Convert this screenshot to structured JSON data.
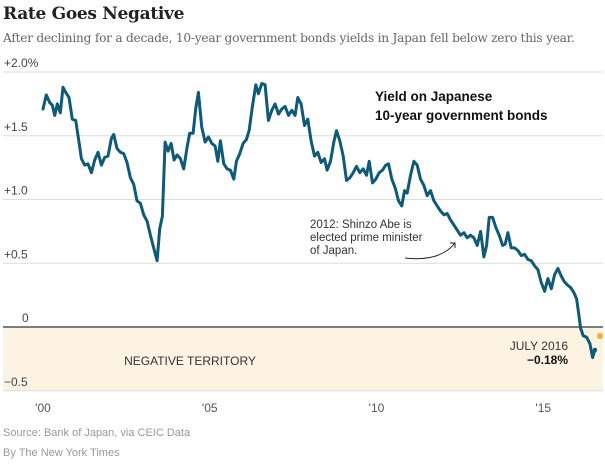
{
  "header": {
    "title": "Rate Goes Negative",
    "subtitle": "After declining for a decade, 10-year government bonds yields in Japan fell below zero this year."
  },
  "footer": {
    "source": "Source: Bank of Japan, via CEIC Data",
    "credit": "By The New York Times"
  },
  "colors": {
    "line": "#0f5a78",
    "negative_band": "#fdf3e3",
    "highlight_dot": "#f4b04f",
    "zero_line": "#333333",
    "grid": "#dddddd"
  },
  "chart_data": {
    "type": "line",
    "title": "Yield on Japanese 10-year government bonds",
    "legend_lines": [
      "Yield on Japanese",
      "10-year government bonds"
    ],
    "xlabel": "",
    "ylabel": "",
    "xlim": [
      2000,
      2017.2
    ],
    "ylim": [
      -0.5,
      2.0
    ],
    "y_ticks": [
      {
        "value": 2.0,
        "label": "+2.0%"
      },
      {
        "value": 1.5,
        "label": "+1.5"
      },
      {
        "value": 1.0,
        "label": "+1.0"
      },
      {
        "value": 0.5,
        "label": "+0.5"
      },
      {
        "value": 0,
        "label": "0"
      },
      {
        "value": -0.5,
        "label": "-0.5"
      }
    ],
    "x_ticks": [
      {
        "value": 2000,
        "label": "'00"
      },
      {
        "value": 2005,
        "label": "'05"
      },
      {
        "value": 2010,
        "label": "'10"
      },
      {
        "value": 2015,
        "label": "'15"
      }
    ],
    "grid": true,
    "negative_region_label": "NEGATIVE TERRITORY",
    "annotation": {
      "lines": [
        "2012: Shinzo Abe is",
        "elected prime minister",
        "of Japan."
      ],
      "target_x": 2012.9,
      "target_y": 0.72
    },
    "end_label": {
      "date": "JULY 2016",
      "value_text": "−0.18%",
      "x": 2016.55,
      "y": -0.18
    },
    "series": [
      {
        "name": "Japan 10-year government bond yield (%)",
        "points": [
          [
            2000.0,
            1.71
          ],
          [
            2000.1,
            1.82
          ],
          [
            2000.2,
            1.76
          ],
          [
            2000.28,
            1.74
          ],
          [
            2000.35,
            1.66
          ],
          [
            2000.43,
            1.75
          ],
          [
            2000.52,
            1.68
          ],
          [
            2000.6,
            1.88
          ],
          [
            2000.68,
            1.84
          ],
          [
            2000.78,
            1.8
          ],
          [
            2000.88,
            1.63
          ],
          [
            2000.98,
            1.62
          ],
          [
            2001.08,
            1.45
          ],
          [
            2001.15,
            1.32
          ],
          [
            2001.25,
            1.27
          ],
          [
            2001.35,
            1.28
          ],
          [
            2001.45,
            1.21
          ],
          [
            2001.55,
            1.31
          ],
          [
            2001.65,
            1.37
          ],
          [
            2001.75,
            1.27
          ],
          [
            2001.85,
            1.33
          ],
          [
            2001.95,
            1.34
          ],
          [
            2002.05,
            1.48
          ],
          [
            2002.12,
            1.51
          ],
          [
            2002.22,
            1.4
          ],
          [
            2002.32,
            1.37
          ],
          [
            2002.42,
            1.36
          ],
          [
            2002.52,
            1.29
          ],
          [
            2002.62,
            1.17
          ],
          [
            2002.72,
            1.12
          ],
          [
            2002.82,
            0.99
          ],
          [
            2002.92,
            0.97
          ],
          [
            2003.02,
            0.88
          ],
          [
            2003.12,
            0.83
          ],
          [
            2003.22,
            0.72
          ],
          [
            2003.32,
            0.62
          ],
          [
            2003.42,
            0.52
          ],
          [
            2003.5,
            0.77
          ],
          [
            2003.58,
            0.87
          ],
          [
            2003.66,
            1.45
          ],
          [
            2003.75,
            1.38
          ],
          [
            2003.84,
            1.44
          ],
          [
            2003.93,
            1.31
          ],
          [
            2004.02,
            1.35
          ],
          [
            2004.12,
            1.32
          ],
          [
            2004.22,
            1.24
          ],
          [
            2004.32,
            1.41
          ],
          [
            2004.4,
            1.52
          ],
          [
            2004.5,
            1.52
          ],
          [
            2004.58,
            1.71
          ],
          [
            2004.66,
            1.84
          ],
          [
            2004.76,
            1.57
          ],
          [
            2004.86,
            1.45
          ],
          [
            2004.96,
            1.49
          ],
          [
            2005.06,
            1.44
          ],
          [
            2005.16,
            1.42
          ],
          [
            2005.24,
            1.3
          ],
          [
            2005.32,
            1.46
          ],
          [
            2005.42,
            1.28
          ],
          [
            2005.52,
            1.24
          ],
          [
            2005.62,
            1.23
          ],
          [
            2005.72,
            1.16
          ],
          [
            2005.8,
            1.3
          ],
          [
            2005.9,
            1.36
          ],
          [
            2006.0,
            1.44
          ],
          [
            2006.1,
            1.47
          ],
          [
            2006.18,
            1.54
          ],
          [
            2006.28,
            1.73
          ],
          [
            2006.38,
            1.9
          ],
          [
            2006.46,
            1.83
          ],
          [
            2006.56,
            1.91
          ],
          [
            2006.66,
            1.9
          ],
          [
            2006.76,
            1.62
          ],
          [
            2006.86,
            1.7
          ],
          [
            2006.96,
            1.75
          ],
          [
            2007.06,
            1.67
          ],
          [
            2007.16,
            1.71
          ],
          [
            2007.26,
            1.73
          ],
          [
            2007.36,
            1.66
          ],
          [
            2007.46,
            1.7
          ],
          [
            2007.56,
            1.66
          ],
          [
            2007.64,
            1.8
          ],
          [
            2007.74,
            1.75
          ],
          [
            2007.84,
            1.58
          ],
          [
            2007.94,
            1.63
          ],
          [
            2008.04,
            1.46
          ],
          [
            2008.14,
            1.34
          ],
          [
            2008.24,
            1.37
          ],
          [
            2008.34,
            1.29
          ],
          [
            2008.44,
            1.32
          ],
          [
            2008.52,
            1.23
          ],
          [
            2008.62,
            1.3
          ],
          [
            2008.72,
            1.45
          ],
          [
            2008.8,
            1.54
          ],
          [
            2008.9,
            1.46
          ],
          [
            2009.0,
            1.34
          ],
          [
            2009.1,
            1.15
          ],
          [
            2009.2,
            1.17
          ],
          [
            2009.3,
            1.21
          ],
          [
            2009.4,
            1.26
          ],
          [
            2009.5,
            1.21
          ],
          [
            2009.6,
            1.24
          ],
          [
            2009.7,
            1.19
          ],
          [
            2009.78,
            1.3
          ],
          [
            2009.88,
            1.13
          ],
          [
            2009.98,
            1.16
          ],
          [
            2010.08,
            1.21
          ],
          [
            2010.18,
            1.23
          ],
          [
            2010.28,
            1.27
          ],
          [
            2010.36,
            1.28
          ],
          [
            2010.46,
            1.16
          ],
          [
            2010.56,
            1.09
          ],
          [
            2010.66,
            0.99
          ],
          [
            2010.76,
            0.95
          ],
          [
            2010.84,
            1.07
          ],
          [
            2010.92,
            1.05
          ],
          [
            2011.02,
            1.19
          ],
          [
            2011.12,
            1.3
          ],
          [
            2011.22,
            1.27
          ],
          [
            2011.32,
            1.16
          ],
          [
            2011.42,
            1.11
          ],
          [
            2011.52,
            1.03
          ],
          [
            2011.62,
            1.07
          ],
          [
            2011.72,
            0.99
          ],
          [
            2011.82,
            0.95
          ],
          [
            2011.92,
            0.91
          ],
          [
            2012.02,
            0.88
          ],
          [
            2012.12,
            0.89
          ],
          [
            2012.22,
            0.84
          ],
          [
            2012.32,
            0.8
          ],
          [
            2012.42,
            0.76
          ],
          [
            2012.52,
            0.72
          ],
          [
            2012.62,
            0.74
          ],
          [
            2012.72,
            0.7
          ],
          [
            2012.82,
            0.72
          ],
          [
            2012.92,
            0.7
          ],
          [
            2013.02,
            0.64
          ],
          [
            2013.12,
            0.75
          ],
          [
            2013.22,
            0.55
          ],
          [
            2013.3,
            0.64
          ],
          [
            2013.38,
            0.86
          ],
          [
            2013.48,
            0.86
          ],
          [
            2013.58,
            0.78
          ],
          [
            2013.68,
            0.72
          ],
          [
            2013.78,
            0.64
          ],
          [
            2013.86,
            0.65
          ],
          [
            2013.94,
            0.74
          ],
          [
            2014.04,
            0.62
          ],
          [
            2014.14,
            0.62
          ],
          [
            2014.24,
            0.6
          ],
          [
            2014.34,
            0.56
          ],
          [
            2014.44,
            0.57
          ],
          [
            2014.54,
            0.53
          ],
          [
            2014.64,
            0.52
          ],
          [
            2014.74,
            0.48
          ],
          [
            2014.84,
            0.45
          ],
          [
            2014.94,
            0.35
          ],
          [
            2015.04,
            0.28
          ],
          [
            2015.14,
            0.38
          ],
          [
            2015.24,
            0.3
          ],
          [
            2015.34,
            0.41
          ],
          [
            2015.44,
            0.46
          ],
          [
            2015.52,
            0.41
          ],
          [
            2015.62,
            0.36
          ],
          [
            2015.72,
            0.33
          ],
          [
            2015.82,
            0.31
          ],
          [
            2015.92,
            0.27
          ],
          [
            2016.0,
            0.22
          ],
          [
            2016.06,
            0.11
          ],
          [
            2016.12,
            -0.01
          ],
          [
            2016.2,
            -0.07
          ],
          [
            2016.3,
            -0.08
          ],
          [
            2016.4,
            -0.13
          ],
          [
            2016.48,
            -0.24
          ],
          [
            2016.55,
            -0.18
          ]
        ]
      }
    ]
  }
}
